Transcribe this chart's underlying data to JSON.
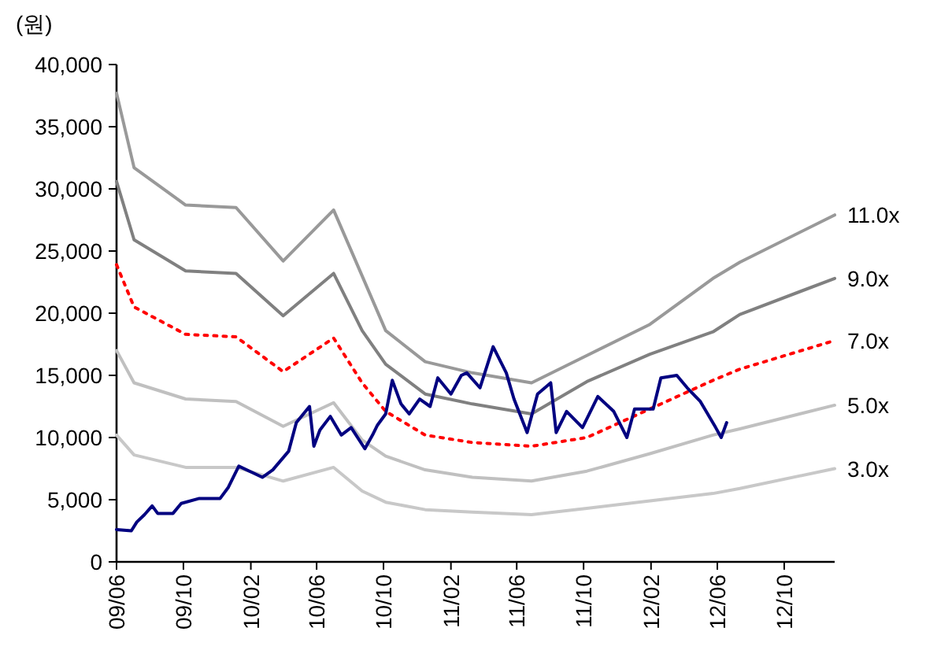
{
  "chart_data": {
    "type": "line",
    "ylabel": "(원)",
    "xlim": [
      "2009-06-01",
      "2013-01-01"
    ],
    "ylim": [
      0,
      40000
    ],
    "xticks": [
      {
        "value": "2009-06-01",
        "label": "09/06"
      },
      {
        "value": "2009-10-01",
        "label": "09/10"
      },
      {
        "value": "2010-02-01",
        "label": "10/02"
      },
      {
        "value": "2010-06-01",
        "label": "10/06"
      },
      {
        "value": "2010-10-01",
        "label": "10/10"
      },
      {
        "value": "2011-02-01",
        "label": "11/02"
      },
      {
        "value": "2011-06-01",
        "label": "11/06"
      },
      {
        "value": "2011-10-01",
        "label": "11/10"
      },
      {
        "value": "2012-02-01",
        "label": "12/02"
      },
      {
        "value": "2012-06-01",
        "label": "12/06"
      },
      {
        "value": "2012-10-01",
        "label": "12/10"
      }
    ],
    "yticks": [
      0,
      {
        "value": 5000,
        "label": "5,000"
      },
      {
        "value": 10000,
        "label": "10,000"
      },
      {
        "value": 15000,
        "label": "15,000"
      },
      {
        "value": 20000,
        "label": "20,000"
      },
      {
        "value": 25000,
        "label": "25,000"
      },
      {
        "value": 30000,
        "label": "30,000"
      },
      {
        "value": 35000,
        "label": "35,000"
      },
      {
        "value": 40000,
        "label": "40,000"
      }
    ],
    "grid": false,
    "series": [
      {
        "name": "11.0x",
        "color": "#999999",
        "line_style": "solid",
        "x": [
          "2009-06-01",
          "2009-07-03",
          "2009-10-05",
          "2010-01-05",
          "2010-04-01",
          "2010-07-02",
          "2010-08-23",
          "2010-10-05",
          "2010-12-16",
          "2011-03-12",
          "2011-06-28",
          "2011-10-07",
          "2012-01-30",
          "2012-05-24",
          "2012-07-12",
          "2013-01-01"
        ],
        "values": [
          37700,
          31700,
          28700,
          28500,
          24200,
          28300,
          23000,
          18600,
          16100,
          15200,
          14400,
          16600,
          19100,
          22800,
          24100,
          27900
        ]
      },
      {
        "name": "9.0x",
        "color": "#808080",
        "line_style": "solid",
        "x": [
          "2009-06-01",
          "2009-07-03",
          "2009-10-05",
          "2010-01-05",
          "2010-04-01",
          "2010-07-02",
          "2010-08-23",
          "2010-10-05",
          "2010-12-16",
          "2011-03-12",
          "2011-06-28",
          "2011-10-07",
          "2012-01-30",
          "2012-05-24",
          "2012-07-12",
          "2013-01-01"
        ],
        "values": [
          30600,
          25900,
          23400,
          23200,
          19800,
          23200,
          18600,
          15900,
          13500,
          12700,
          11900,
          14500,
          16700,
          18500,
          19900,
          22800
        ]
      },
      {
        "name": "7.0x",
        "color": "#ff0000",
        "line_style": "dotted",
        "x": [
          "2009-06-01",
          "2009-07-03",
          "2009-10-05",
          "2010-01-05",
          "2010-04-01",
          "2010-07-02",
          "2010-08-23",
          "2010-10-05",
          "2010-12-16",
          "2011-03-12",
          "2011-06-28",
          "2011-10-07",
          "2012-01-30",
          "2012-05-24",
          "2012-07-12",
          "2013-01-01"
        ],
        "values": [
          23900,
          20500,
          18300,
          18100,
          15300,
          18000,
          14400,
          12100,
          10200,
          9600,
          9300,
          10000,
          12300,
          14600,
          15500,
          17800
        ]
      },
      {
        "name": "5.0x",
        "color": "#c0c0c0",
        "line_style": "solid",
        "x": [
          "2009-06-01",
          "2009-07-03",
          "2009-10-05",
          "2010-01-05",
          "2010-04-01",
          "2010-07-02",
          "2010-08-23",
          "2010-10-05",
          "2010-12-16",
          "2011-03-12",
          "2011-06-28",
          "2011-10-07",
          "2012-01-30",
          "2012-05-24",
          "2012-07-12",
          "2013-01-01"
        ],
        "values": [
          17000,
          14400,
          13100,
          12900,
          10900,
          12800,
          9800,
          8500,
          7400,
          6800,
          6500,
          7300,
          8700,
          10200,
          10700,
          12600
        ]
      },
      {
        "name": "3.0x",
        "color": "#c8c8c8",
        "line_style": "solid",
        "x": [
          "2009-06-01",
          "2009-07-03",
          "2009-10-05",
          "2010-01-05",
          "2010-04-01",
          "2010-07-02",
          "2010-08-23",
          "2010-10-05",
          "2010-12-16",
          "2011-03-12",
          "2011-06-28",
          "2011-10-07",
          "2012-01-30",
          "2012-05-24",
          "2012-07-12",
          "2013-01-01"
        ],
        "values": [
          10200,
          8600,
          7600,
          7600,
          6500,
          7600,
          5700,
          4800,
          4200,
          4000,
          3800,
          4300,
          4900,
          5500,
          5900,
          7500
        ]
      },
      {
        "color": "#000080",
        "line_style": "solid",
        "x": [
          "2009-06-01",
          "2009-06-28",
          "2009-07-08",
          "2009-07-22",
          "2009-08-05",
          "2009-08-15",
          "2009-09-12",
          "2009-09-27",
          "2009-10-30",
          "2009-12-07",
          "2009-12-22",
          "2010-01-10",
          "2010-02-03",
          "2010-02-22",
          "2010-03-13",
          "2010-04-11",
          "2010-04-25",
          "2010-05-19",
          "2010-05-27",
          "2010-06-07",
          "2010-06-26",
          "2010-07-16",
          "2010-08-03",
          "2010-08-28",
          "2010-09-11",
          "2010-09-20",
          "2010-10-05",
          "2010-10-17",
          "2010-11-02",
          "2010-11-17",
          "2010-12-06",
          "2010-12-25",
          "2011-01-08",
          "2011-02-01",
          "2011-02-20",
          "2011-03-02",
          "2011-03-26",
          "2011-04-19",
          "2011-05-13",
          "2011-05-27",
          "2011-06-20",
          "2011-07-09",
          "2011-08-02",
          "2011-08-12",
          "2011-08-31",
          "2011-09-29",
          "2011-10-27",
          "2011-11-25",
          "2011-12-19",
          "2012-01-02",
          "2012-02-05",
          "2012-02-19",
          "2012-03-19",
          "2012-04-07",
          "2012-05-01",
          "2012-05-29",
          "2012-06-08",
          "2012-06-18"
        ],
        "values": [
          2600,
          2500,
          3200,
          3800,
          4500,
          3900,
          3900,
          4700,
          5100,
          5100,
          6000,
          7700,
          7200,
          6800,
          7400,
          8900,
          11200,
          12500,
          9300,
          10600,
          11700,
          10200,
          10800,
          9100,
          10200,
          11000,
          11900,
          14600,
          12700,
          11900,
          13100,
          12500,
          14800,
          13500,
          15000,
          15200,
          14000,
          17300,
          15200,
          13100,
          10400,
          13500,
          14400,
          10400,
          12100,
          10800,
          13300,
          12100,
          10000,
          12300,
          12300,
          14800,
          15000,
          14000,
          12900,
          10800,
          10000,
          11200
        ]
      }
    ]
  }
}
